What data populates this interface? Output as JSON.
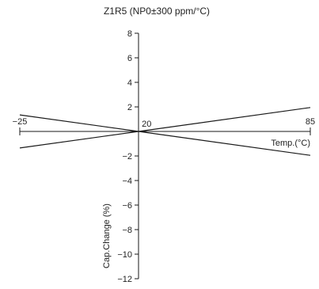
{
  "chart_data": {
    "type": "line",
    "title": "Z1R5 (NP0±300 ppm/°C)",
    "xlabel": "Temp.(°C)",
    "ylabel": "Cap.Change (%)",
    "xlim": [
      -25,
      85
    ],
    "ylim": [
      -12,
      8
    ],
    "x_ticks": [
      -25,
      20,
      85
    ],
    "x_tick_labels": [
      "−25",
      "20",
      "85"
    ],
    "y_ticks": [
      8,
      6,
      4,
      2,
      -2,
      -4,
      -6,
      -8,
      -10,
      -12
    ],
    "y_tick_labels": [
      "8",
      "6",
      "4",
      "2",
      "−2",
      "−4",
      "−6",
      "−8",
      "−10",
      "−12"
    ],
    "grid": false,
    "legend": "none",
    "series": [
      {
        "x": [
          -25,
          20,
          85
        ],
        "y": [
          1.35,
          0,
          1.95
        ]
      },
      {
        "x": [
          -25,
          20,
          85
        ],
        "y": [
          -1.35,
          0,
          -1.95
        ]
      }
    ],
    "colors": {
      "line": "#1a1a1a",
      "axis": "#1a1a1a",
      "text": "#222222"
    }
  }
}
